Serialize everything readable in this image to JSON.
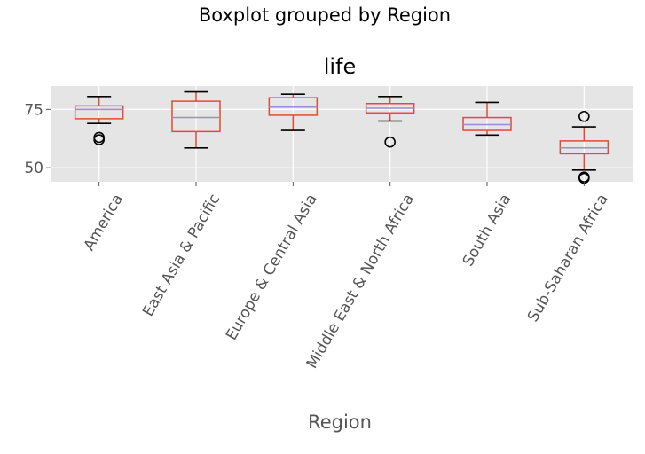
{
  "chart_data": {
    "type": "boxplot",
    "suptitle": "Boxplot grouped by Region",
    "title": "life",
    "xlabel": "Region",
    "ylabel": "",
    "style": "ggplot",
    "grid": true,
    "ylim": [
      44,
      85
    ],
    "yticks": [
      50,
      75
    ],
    "yticklabels": [
      "50",
      "75"
    ],
    "colors": {
      "background": "#e5e5e5",
      "grid": "#ffffff",
      "box": "#e24a33",
      "median": "#988ed5",
      "whisker_cap": "#000000",
      "tick_text": "#555555"
    },
    "categories": [
      "America",
      "East Asia & Pacific",
      "Europe & Central Asia",
      "Middle East & North Africa",
      "South Asia",
      "Sub-Saharan Africa"
    ],
    "boxes": [
      {
        "whislo": 69.0,
        "q1": 71.0,
        "med": 75.0,
        "q3": 76.5,
        "whishi": 80.5,
        "fliers": [
          62.0,
          63.0
        ]
      },
      {
        "whislo": 58.5,
        "q1": 65.5,
        "med": 71.5,
        "q3": 78.5,
        "whishi": 82.5,
        "fliers": []
      },
      {
        "whislo": 66.0,
        "q1": 72.5,
        "med": 76.0,
        "q3": 80.0,
        "whishi": 81.5,
        "fliers": []
      },
      {
        "whislo": 70.0,
        "q1": 73.5,
        "med": 75.5,
        "q3": 77.5,
        "whishi": 80.5,
        "fliers": [
          61.0
        ]
      },
      {
        "whislo": 64.0,
        "q1": 66.0,
        "med": 68.5,
        "q3": 71.5,
        "whishi": 78.0,
        "fliers": []
      },
      {
        "whislo": 49.0,
        "q1": 56.0,
        "med": 58.5,
        "q3": 61.5,
        "whishi": 67.5,
        "fliers": [
          72.0,
          46.0,
          45.5
        ]
      }
    ]
  }
}
